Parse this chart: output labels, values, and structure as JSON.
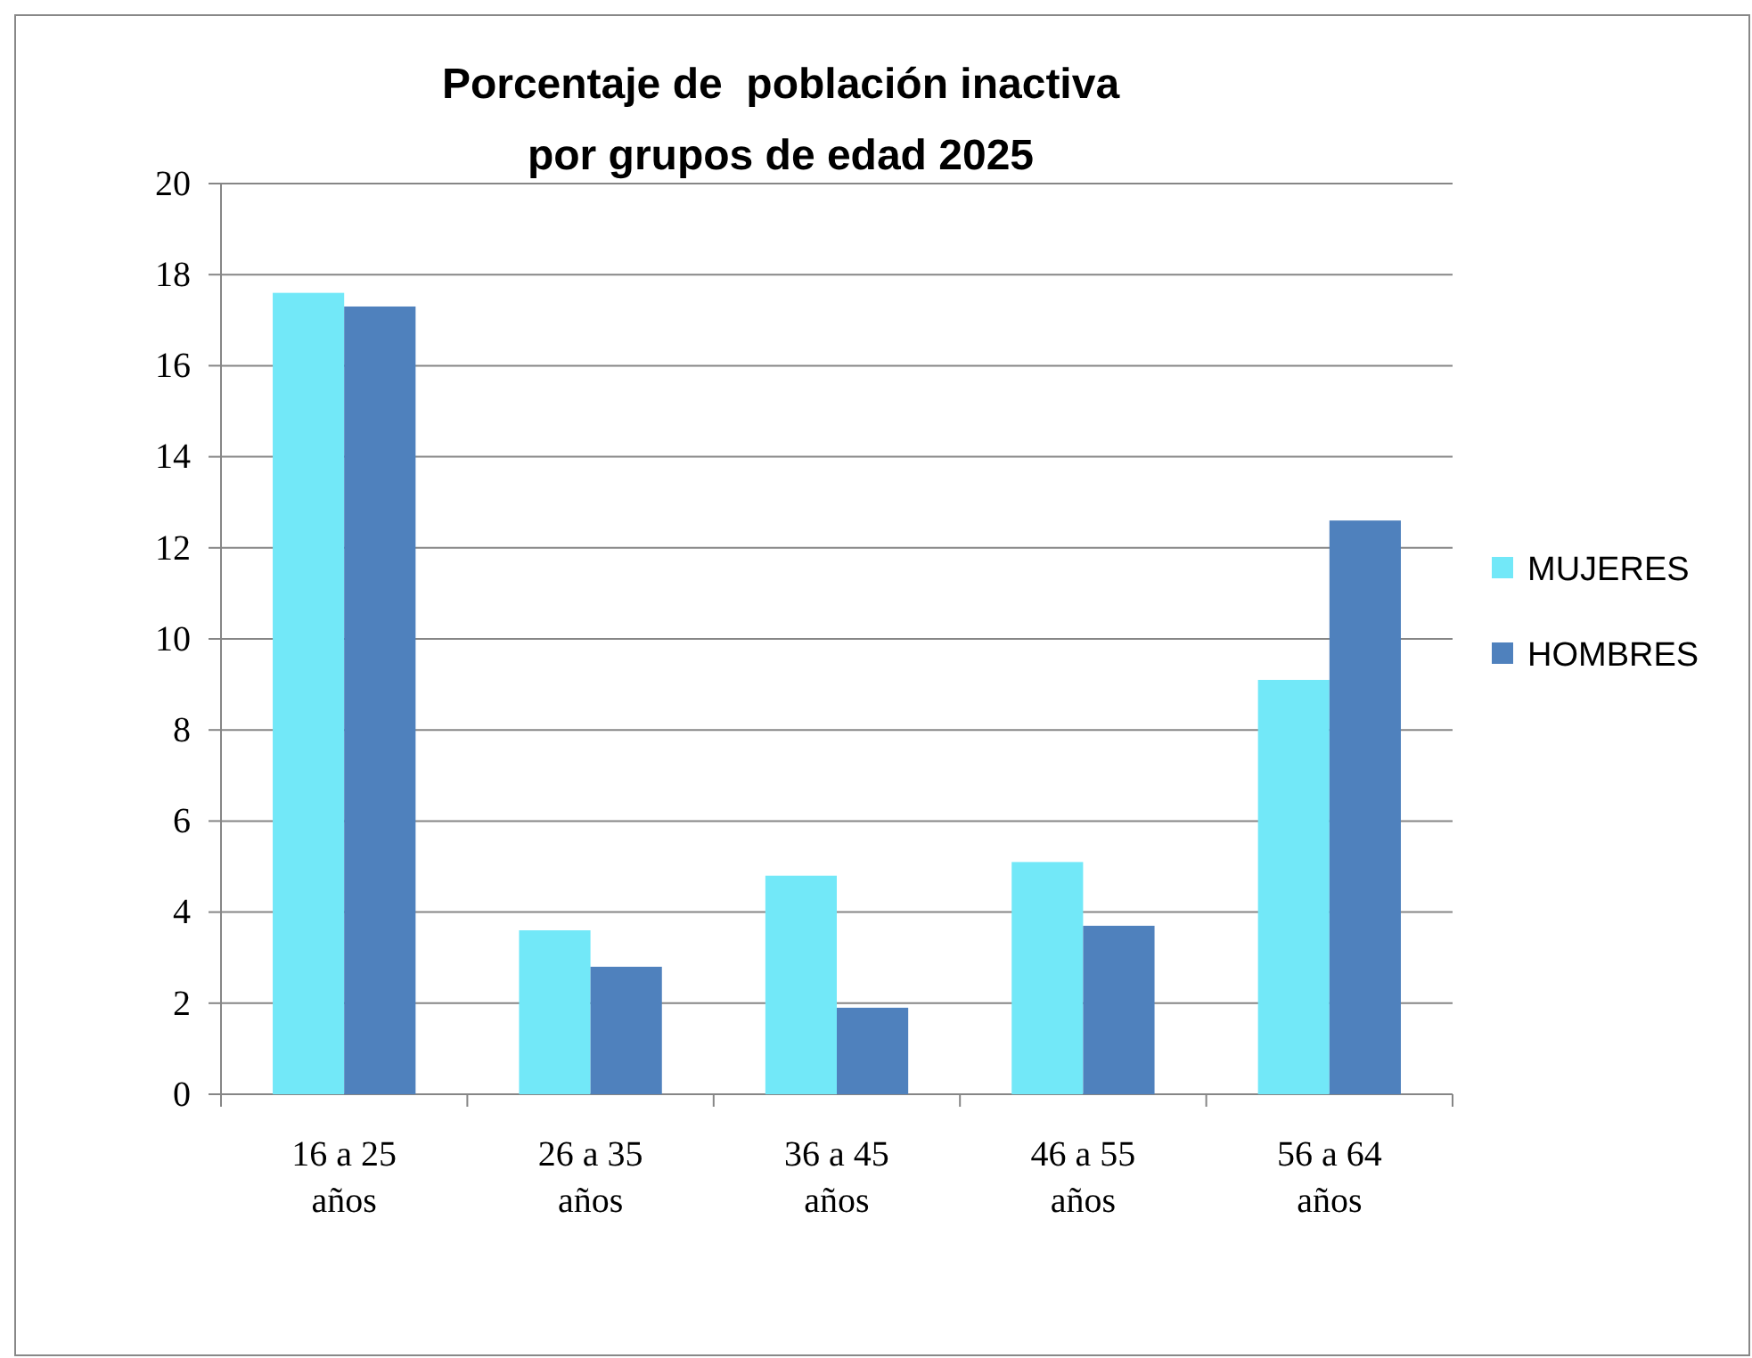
{
  "chart_data": {
    "type": "bar",
    "title": "Porcentaje de  población inactiva\npor grupos de edad 2025",
    "categories": [
      "16 a 25 años",
      "26 a 35 años",
      "36 a 45 años",
      "46 a 55 años",
      "56 a 64 años"
    ],
    "series": [
      {
        "name": "MUJERES",
        "color": "#72e8f8",
        "values": [
          17.6,
          3.6,
          4.8,
          5.1,
          9.1
        ]
      },
      {
        "name": "HOMBRES",
        "color": "#4f81bd",
        "values": [
          17.3,
          2.8,
          1.9,
          3.7,
          12.6
        ]
      }
    ],
    "ylim": [
      0,
      20
    ],
    "yticks": [
      0,
      2,
      4,
      6,
      8,
      10,
      12,
      14,
      16,
      18,
      20
    ],
    "grid": "y",
    "legend": "right"
  }
}
